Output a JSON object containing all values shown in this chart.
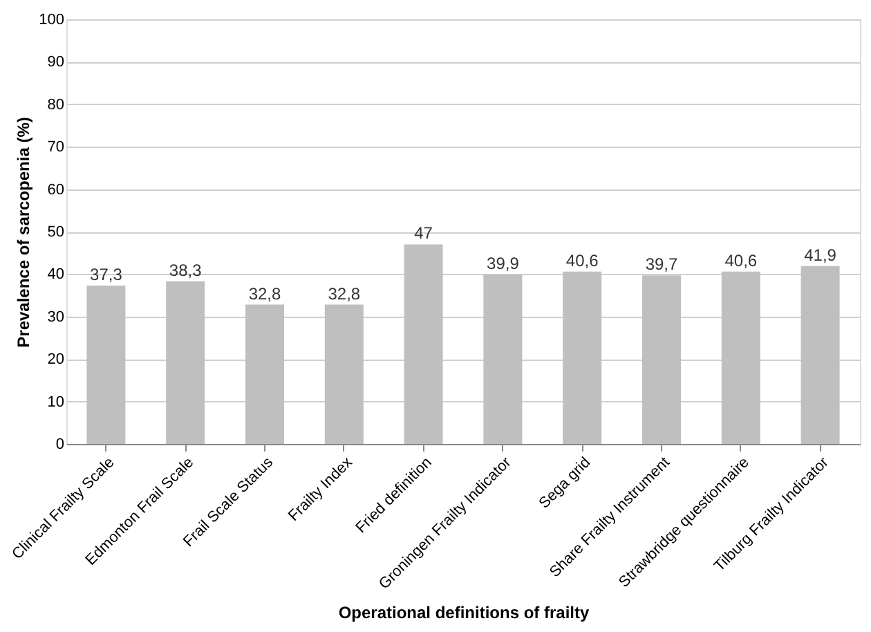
{
  "chart_data": {
    "type": "bar",
    "xlabel": "Operational definitions of frailty",
    "ylabel": "Prevalence of sarcopenia (%)",
    "categories": [
      "Clinical Frailty Scale",
      "Edmonton Frail Scale",
      "Frail Scale Status",
      "Frailty Index",
      "Fried definition",
      "Groningen Frailty Indicator",
      "Sega grid",
      "Share Frailty Instrument",
      "Strawbridge questionnaire",
      "Tilburg Frailty Indicator"
    ],
    "values": [
      37.3,
      38.3,
      32.8,
      32.8,
      47,
      39.9,
      40.6,
      39.7,
      40.6,
      41.9
    ],
    "value_labels": [
      "37,3",
      "38,3",
      "32,8",
      "32,8",
      "47",
      "39,9",
      "40,6",
      "39,7",
      "40,6",
      "41,9"
    ],
    "color": "#bfbfbf",
    "ylim": [
      0,
      100
    ],
    "yticks": [
      0,
      10,
      20,
      30,
      40,
      50,
      60,
      70,
      80,
      90,
      100
    ],
    "grid": "y"
  }
}
